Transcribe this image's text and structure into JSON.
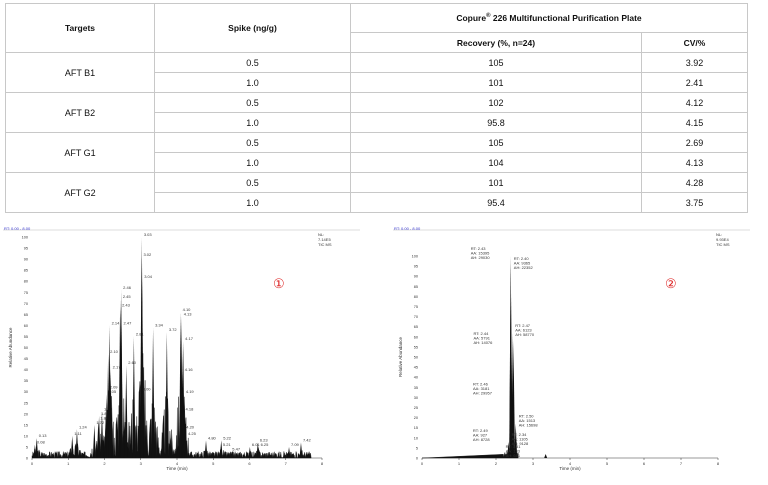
{
  "table": {
    "headers": {
      "targets": "Targets",
      "spike": "Spike (ng/g)",
      "product_name": "Copure",
      "product_sup": "®",
      "product_rest": " 226 Multifunctional Purification Plate",
      "recovery": "Recovery (%, n=24)",
      "cv": "CV/%"
    },
    "rows": [
      {
        "target": "AFT B1",
        "spike": "0.5",
        "recovery": "105",
        "cv": "3.92"
      },
      {
        "target": "",
        "spike": "1.0",
        "recovery": "101",
        "cv": "2.41"
      },
      {
        "target": "AFT B2",
        "spike": "0.5",
        "recovery": "102",
        "cv": "4.12"
      },
      {
        "target": "",
        "spike": "1.0",
        "recovery": "95.8",
        "cv": "4.15"
      },
      {
        "target": "AFT G1",
        "spike": "0.5",
        "recovery": "105",
        "cv": "2.69"
      },
      {
        "target": "",
        "spike": "1.0",
        "recovery": "104",
        "cv": "4.13"
      },
      {
        "target": "AFT G2",
        "spike": "0.5",
        "recovery": "101",
        "cv": "4.28"
      },
      {
        "target": "",
        "spike": "1.0",
        "recovery": "95.4",
        "cv": "3.75"
      }
    ]
  },
  "chart_data": [
    {
      "type": "line",
      "marker": "①",
      "range_label": "RT: 0.00 - 8.00",
      "corner": [
        "NL:",
        "7.14E5",
        "TIC MS"
      ],
      "xlabel": "Time (min)",
      "ylabel": "Relative Abundance",
      "xlim": [
        0,
        8
      ],
      "ylim": [
        0,
        100
      ],
      "xticks": [
        "0",
        "1",
        "2",
        "3",
        "4",
        "5",
        "6",
        "7",
        "8"
      ],
      "yticks": [
        "0",
        "5",
        "10",
        "15",
        "20",
        "25",
        "30",
        "35",
        "40",
        "45",
        "50",
        "55",
        "60",
        "65",
        "70",
        "75",
        "80",
        "85",
        "90",
        "95",
        "100"
      ],
      "peaks": [
        {
          "rt": "0.08",
          "y": 6
        },
        {
          "rt": "0.13",
          "y": 9
        },
        {
          "rt": "1.11",
          "y": 10
        },
        {
          "rt": "1.24",
          "y": 13
        },
        {
          "rt": "1.72",
          "y": 15
        },
        {
          "rt": "1.83",
          "y": 17
        },
        {
          "rt": "1.85",
          "y": 19
        },
        {
          "rt": "1.93",
          "y": 21
        },
        {
          "rt": "2.05",
          "y": 29
        },
        {
          "rt": "2.09",
          "y": 31
        },
        {
          "rt": "2.17",
          "y": 40
        },
        {
          "rt": "2.10",
          "y": 47
        },
        {
          "rt": "2.14",
          "y": 60
        },
        {
          "rt": "2.43",
          "y": 68
        },
        {
          "rt": "2.45",
          "y": 72
        },
        {
          "rt": "2.46",
          "y": 76
        },
        {
          "rt": "2.47",
          "y": 60
        },
        {
          "rt": "2.81",
          "y": 55
        },
        {
          "rt": "2.60",
          "y": 42
        },
        {
          "rt": "3.00",
          "y": 30
        },
        {
          "rt": "3.03",
          "y": 100
        },
        {
          "rt": "3.02",
          "y": 91
        },
        {
          "rt": "3.04",
          "y": 81
        },
        {
          "rt": "3.34",
          "y": 59
        },
        {
          "rt": "3.72",
          "y": 57
        },
        {
          "rt": "4.13",
          "y": 64
        },
        {
          "rt": "4.10",
          "y": 66
        },
        {
          "rt": "4.17",
          "y": 53
        },
        {
          "rt": "4.16",
          "y": 39
        },
        {
          "rt": "4.19",
          "y": 29
        },
        {
          "rt": "4.18",
          "y": 21
        },
        {
          "rt": "4.20",
          "y": 13
        },
        {
          "rt": "4.25",
          "y": 10
        },
        {
          "rt": "4.80",
          "y": 8
        },
        {
          "rt": "5.21",
          "y": 5
        },
        {
          "rt": "5.22",
          "y": 8
        },
        {
          "rt": "5.47",
          "y": 3
        },
        {
          "rt": "6.01",
          "y": 5
        },
        {
          "rt": "6.23",
          "y": 7
        },
        {
          "rt": "6.25",
          "y": 5
        },
        {
          "rt": "7.09",
          "y": 5
        },
        {
          "rt": "7.42",
          "y": 7
        }
      ]
    },
    {
      "type": "line",
      "marker": "②",
      "range_label": "RT: 0.00 - 8.00",
      "corner": [
        "NL:",
        "9.93E4",
        "TIC MS"
      ],
      "xlabel": "Time (min)",
      "ylabel": "Relative Abundance",
      "xlim": [
        0,
        8
      ],
      "ylim": [
        0,
        100
      ],
      "xticks": [
        "0",
        "1",
        "2",
        "3",
        "4",
        "5",
        "6",
        "7",
        "8"
      ],
      "yticks": [
        "0",
        "5",
        "10",
        "15",
        "20",
        "25",
        "30",
        "35",
        "40",
        "45",
        "50",
        "55",
        "60",
        "65",
        "70",
        "75",
        "80",
        "85",
        "90",
        "95",
        "100"
      ],
      "peaks": [
        {
          "rt": "2.43",
          "y": 100,
          "label": [
            "RT: 2.43",
            "AA: 15395",
            "AH: 29030"
          ]
        },
        {
          "rt": "2.40",
          "y": 95,
          "label": [
            "RT: 2.40",
            "AA: 9365",
            "AH: 22352"
          ]
        },
        {
          "rt": "2.44",
          "y": 58,
          "label": [
            "RT: 2.44",
            "AA: 5791",
            "AH: 14076"
          ]
        },
        {
          "rt": "2.47",
          "y": 62,
          "label": [
            "RT: 2.47",
            "AA: 6123",
            "AH: 58770"
          ]
        },
        {
          "rt": "2.46",
          "y": 33,
          "label": [
            "RT: 2.46",
            "AA: 3181",
            "AH: 29957"
          ]
        },
        {
          "rt": "2.50",
          "y": 17,
          "label": [
            "RT: 2.50",
            "AA: 1513",
            "AH: 15698"
          ]
        },
        {
          "rt": "2.49",
          "y": 10,
          "label": [
            "RT: 2.49",
            "AA: 927",
            "AH: 8728"
          ]
        },
        {
          "rt": "2.34",
          "y": 8,
          "label": [
            "RT: 2.34",
            "AA: 1105",
            "AH: 9128"
          ]
        },
        {
          "rt": "3.31",
          "y": 2,
          "label": [
            "RT: 3.31",
            "AA: 133",
            "AH: 681"
          ]
        }
      ]
    }
  ]
}
